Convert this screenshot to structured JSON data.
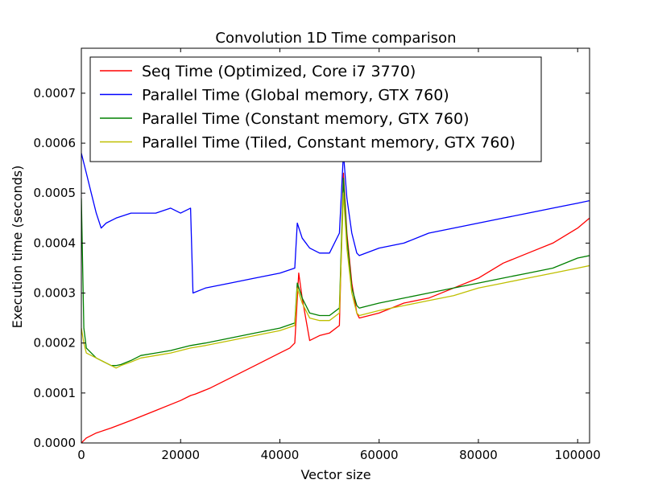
{
  "chart_data": {
    "type": "line",
    "title": "Convolution 1D Time comparison",
    "xlabel": "Vector size",
    "ylabel": "Execution time (seconds)",
    "xlim": [
      0,
      102400
    ],
    "ylim": [
      0,
      0.00079
    ],
    "xticks": [
      0,
      20000,
      40000,
      60000,
      80000,
      100000
    ],
    "xtick_labels": [
      "0",
      "20000",
      "40000",
      "60000",
      "80000",
      "100000"
    ],
    "yticks": [
      0,
      0.0001,
      0.0002,
      0.0003,
      0.0004,
      0.0005,
      0.0006,
      0.0007
    ],
    "ytick_labels": [
      "0.0000",
      "0.0001",
      "0.0002",
      "0.0003",
      "0.0004",
      "0.0005",
      "0.0006",
      "0.0007"
    ],
    "grid": false,
    "legend_position": "top-left",
    "series": [
      {
        "name": "Seq Time (Optimized, Core i7 3770)",
        "color": "#ff0000",
        "x": [
          0,
          1000,
          3000,
          6000,
          10000,
          15000,
          20000,
          22000,
          23000,
          26000,
          30000,
          35000,
          40000,
          42000,
          43000,
          43800,
          44500,
          46000,
          48000,
          50000,
          52000,
          52800,
          53500,
          54500,
          55500,
          56000,
          60000,
          65000,
          70000,
          75000,
          80000,
          85000,
          90000,
          95000,
          100000,
          102400
        ],
        "y": [
          0.0,
          1e-05,
          2e-05,
          3e-05,
          4.5e-05,
          6.5e-05,
          8.5e-05,
          9.5e-05,
          9.8e-05,
          0.00011,
          0.00013,
          0.000155,
          0.00018,
          0.00019,
          0.0002,
          0.00034,
          0.00029,
          0.000205,
          0.000215,
          0.00022,
          0.000235,
          0.00054,
          0.00042,
          0.00032,
          0.00026,
          0.00025,
          0.00026,
          0.00028,
          0.00029,
          0.00031,
          0.00033,
          0.00036,
          0.00038,
          0.0004,
          0.00043,
          0.00045
        ]
      },
      {
        "name": "Parallel Time (Global memory, GTX 760)",
        "color": "#0000ff",
        "x": [
          0,
          1000,
          2000,
          3000,
          4000,
          5000,
          7000,
          10000,
          12000,
          15000,
          18000,
          20000,
          22000,
          22500,
          25000,
          30000,
          35000,
          40000,
          43000,
          43500,
          44500,
          46000,
          48000,
          50000,
          52000,
          52800,
          53500,
          54500,
          55500,
          56000,
          60000,
          65000,
          70000,
          75000,
          80000,
          85000,
          90000,
          95000,
          100000,
          102400
        ],
        "y": [
          0.00058,
          0.00054,
          0.0005,
          0.00046,
          0.00043,
          0.00044,
          0.00045,
          0.00046,
          0.00046,
          0.00046,
          0.00047,
          0.00046,
          0.00047,
          0.0003,
          0.00031,
          0.00032,
          0.00033,
          0.00034,
          0.00035,
          0.00044,
          0.00041,
          0.00039,
          0.00038,
          0.00038,
          0.00042,
          0.00058,
          0.00049,
          0.00042,
          0.00038,
          0.000375,
          0.00039,
          0.0004,
          0.00042,
          0.00043,
          0.00044,
          0.00045,
          0.00046,
          0.00047,
          0.00048,
          0.000485
        ]
      },
      {
        "name": "Parallel Time (Constant memory, GTX 760)",
        "color": "#008000",
        "x": [
          0,
          500,
          1000,
          2000,
          3000,
          4000,
          5000,
          6000,
          7000,
          8000,
          10000,
          12000,
          15000,
          18000,
          20000,
          22000,
          25000,
          30000,
          35000,
          40000,
          43000,
          43500,
          44500,
          46000,
          48000,
          50000,
          52000,
          52800,
          53500,
          54500,
          55500,
          56000,
          60000,
          65000,
          70000,
          75000,
          80000,
          85000,
          90000,
          95000,
          100000,
          102400
        ],
        "y": [
          0.00049,
          0.00023,
          0.00019,
          0.00018,
          0.00017,
          0.000165,
          0.00016,
          0.000155,
          0.000155,
          0.000157,
          0.000165,
          0.000175,
          0.00018,
          0.000185,
          0.00019,
          0.000195,
          0.0002,
          0.00021,
          0.00022,
          0.00023,
          0.00024,
          0.00032,
          0.00029,
          0.00026,
          0.000255,
          0.000255,
          0.00027,
          0.00053,
          0.00041,
          0.00031,
          0.000275,
          0.00027,
          0.00028,
          0.00029,
          0.0003,
          0.00031,
          0.00032,
          0.00033,
          0.00034,
          0.00035,
          0.00037,
          0.000375
        ]
      },
      {
        "name": "Parallel Time (Tiled, Constant memory, GTX 760)",
        "color": "#bfbf00",
        "x": [
          0,
          500,
          1000,
          2000,
          3000,
          4000,
          5000,
          6000,
          7000,
          8000,
          10000,
          12000,
          15000,
          18000,
          20000,
          22000,
          25000,
          30000,
          35000,
          40000,
          43000,
          43500,
          44500,
          46000,
          48000,
          50000,
          52000,
          52800,
          53500,
          54500,
          55500,
          56000,
          60000,
          65000,
          70000,
          75000,
          80000,
          85000,
          90000,
          95000,
          100000,
          102400
        ],
        "y": [
          0.00023,
          0.0002,
          0.00018,
          0.000175,
          0.00017,
          0.000165,
          0.00016,
          0.000155,
          0.00015,
          0.000155,
          0.000162,
          0.00017,
          0.000175,
          0.00018,
          0.000185,
          0.00019,
          0.000195,
          0.000205,
          0.000215,
          0.000225,
          0.000235,
          0.00031,
          0.00028,
          0.00025,
          0.000245,
          0.000245,
          0.00026,
          0.0005,
          0.00039,
          0.0003,
          0.00026,
          0.000255,
          0.000265,
          0.000275,
          0.000285,
          0.000295,
          0.00031,
          0.00032,
          0.00033,
          0.00034,
          0.00035,
          0.000355
        ]
      }
    ]
  }
}
